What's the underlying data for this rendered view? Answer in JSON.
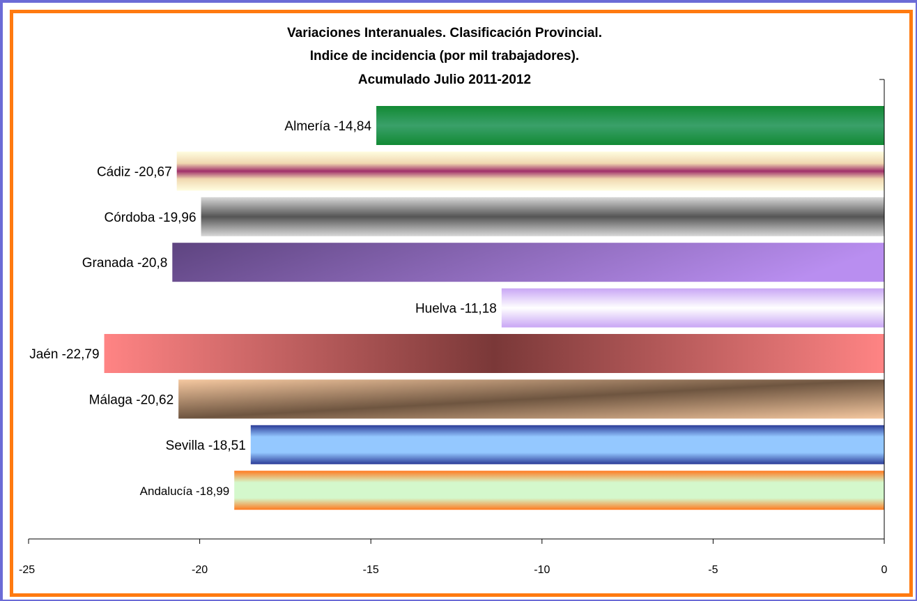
{
  "chart_data": {
    "type": "bar",
    "orientation": "horizontal",
    "title": [
      "Variaciones Interanuales. Clasificación Provincial.",
      "Indice de incidencia (por mil trabajadores).",
      "Acumulado Julio  2011-2012"
    ],
    "categories": [
      "Almería",
      "Cádiz",
      "Córdoba",
      "Granada",
      "Huelva",
      "Jaén",
      "Málaga",
      "Sevilla",
      "Andalucía"
    ],
    "values": [
      -14.84,
      -20.67,
      -19.96,
      -20.8,
      -11.18,
      -22.79,
      -20.62,
      -18.51,
      -18.99
    ],
    "data_labels": [
      "Almería -14,84",
      "Cádiz -20,67",
      "Córdoba -19,96",
      "Granada -20,8",
      "Huelva -11,18",
      "Jaén -22,79",
      "Málaga -20,62",
      "Sevilla -18,51",
      "Andalucía -18,99"
    ],
    "xlim": [
      -25,
      0
    ],
    "x_ticks": [
      -25,
      -20,
      -15,
      -10,
      -5,
      0
    ],
    "x_tick_labels": [
      "-25",
      "-20",
      "-15",
      "-10",
      "-5",
      "0"
    ],
    "grid": false,
    "legend": "none",
    "colors": {
      "frame_outer": "#6b6bd6",
      "frame_inner": "#ff7a10",
      "Almería": "#1e8a3c",
      "Cádiz": "#a0306a",
      "Córdoba": "#555555",
      "Granada": "#8a62b8",
      "Huelva": "#c9a6f5",
      "Jaén": "#7a3838",
      "Málaga": "#6e5540",
      "Sevilla": "#2c3c98",
      "Andalucía": "#ff7a20"
    }
  }
}
